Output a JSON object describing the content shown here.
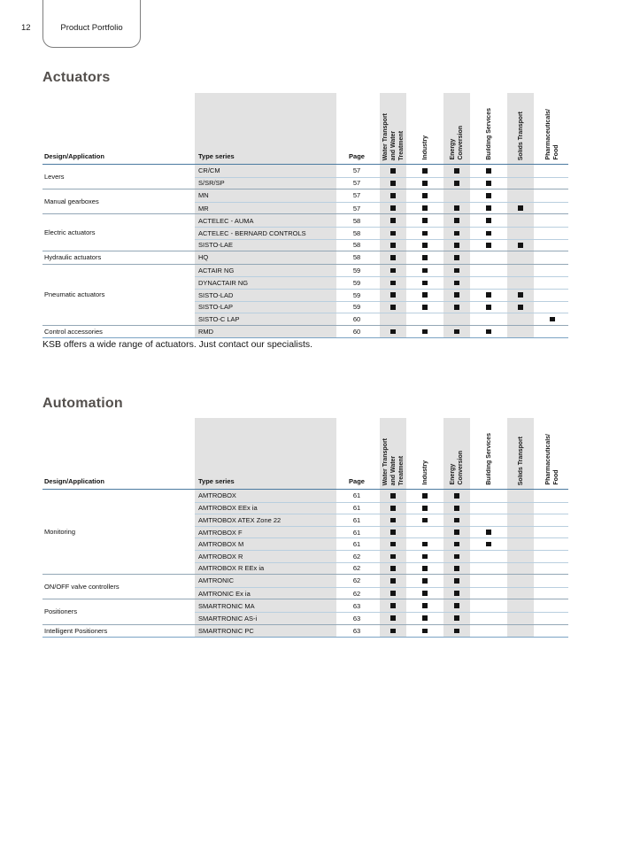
{
  "page": {
    "number": "12",
    "tab_label": "Product Portfolio"
  },
  "colors": {
    "accent_line": "#4b7aa0",
    "row_line": "#b9cfdf",
    "group_line": "#93a7b6",
    "band": "#e2e2e2",
    "mark": "#131313"
  },
  "column_headers": {
    "design": "Design/Application",
    "type": "Type series",
    "page": "Page"
  },
  "categories": [
    {
      "label": "Water Transport\nand Water\nTreatment",
      "shaded": true
    },
    {
      "label": "Industry",
      "shaded": false
    },
    {
      "label": "Energy\nConversion",
      "shaded": true
    },
    {
      "label": "Building Services",
      "shaded": false
    },
    {
      "label": "Solids Transport",
      "shaded": true
    },
    {
      "label": "Pharmaceuticals/\nFood",
      "shaded": false
    }
  ],
  "sections": [
    {
      "title": "Actuators",
      "note": "KSB offers a wide range of actuators. Just contact our specialists.",
      "groups": [
        {
          "application": "Levers",
          "rows": [
            {
              "type": "CR/CM",
              "page": "57",
              "marks": [
                1,
                1,
                1,
                1,
                0,
                0
              ]
            },
            {
              "type": "S/SR/SP",
              "page": "57",
              "marks": [
                1,
                1,
                1,
                1,
                0,
                0
              ]
            }
          ]
        },
        {
          "application": "Manual gearboxes",
          "rows": [
            {
              "type": "MN",
              "page": "57",
              "marks": [
                1,
                1,
                0,
                1,
                0,
                0
              ]
            },
            {
              "type": "MR",
              "page": "57",
              "marks": [
                1,
                1,
                1,
                1,
                1,
                0
              ]
            }
          ]
        },
        {
          "application": "Electric actuators",
          "rows": [
            {
              "type": "ACTELEC - AUMA",
              "page": "58",
              "marks": [
                1,
                1,
                1,
                1,
                0,
                0
              ]
            },
            {
              "type": "ACTELEC - BERNARD CONTROLS",
              "page": "58",
              "marks": [
                1,
                1,
                1,
                1,
                0,
                0
              ]
            },
            {
              "type": "SISTO-LAE",
              "page": "58",
              "marks": [
                1,
                1,
                1,
                1,
                1,
                0
              ]
            }
          ]
        },
        {
          "application": "Hydraulic actuators",
          "rows": [
            {
              "type": "HQ",
              "page": "58",
              "marks": [
                1,
                1,
                1,
                0,
                0,
                0
              ]
            }
          ]
        },
        {
          "application": "Pneumatic actuators",
          "rows": [
            {
              "type": "ACTAIR NG",
              "page": "59",
              "marks": [
                1,
                1,
                1,
                0,
                0,
                0
              ]
            },
            {
              "type": "DYNACTAIR NG",
              "page": "59",
              "marks": [
                1,
                1,
                1,
                0,
                0,
                0
              ]
            },
            {
              "type": "SISTO-LAD",
              "page": "59",
              "marks": [
                1,
                1,
                1,
                1,
                1,
                0
              ]
            },
            {
              "type": "SISTO-LAP",
              "page": "59",
              "marks": [
                1,
                1,
                1,
                1,
                1,
                0
              ]
            },
            {
              "type": "SISTO-C LAP",
              "page": "60",
              "marks": [
                0,
                0,
                0,
                0,
                0,
                1
              ]
            }
          ]
        },
        {
          "application": "Control accessories",
          "rows": [
            {
              "type": "RMD",
              "page": "60",
              "marks": [
                1,
                1,
                1,
                1,
                0,
                0
              ]
            }
          ]
        }
      ]
    },
    {
      "title": "Automation",
      "note": "",
      "groups": [
        {
          "application": "Monitoring",
          "rows": [
            {
              "type": "AMTROBOX",
              "page": "61",
              "marks": [
                1,
                1,
                1,
                0,
                0,
                0
              ]
            },
            {
              "type": "AMTROBOX EEx ia",
              "page": "61",
              "marks": [
                1,
                1,
                1,
                0,
                0,
                0
              ]
            },
            {
              "type": "AMTROBOX ATEX Zone 22",
              "page": "61",
              "marks": [
                1,
                1,
                1,
                0,
                0,
                0
              ]
            },
            {
              "type": "AMTROBOX F",
              "page": "61",
              "marks": [
                1,
                0,
                1,
                1,
                0,
                0
              ]
            },
            {
              "type": "AMTROBOX M",
              "page": "61",
              "marks": [
                1,
                1,
                1,
                1,
                0,
                0
              ]
            },
            {
              "type": "AMTROBOX R",
              "page": "62",
              "marks": [
                1,
                1,
                1,
                0,
                0,
                0
              ]
            },
            {
              "type": "AMTROBOX R EEx ia",
              "page": "62",
              "marks": [
                1,
                1,
                1,
                0,
                0,
                0
              ]
            }
          ]
        },
        {
          "application": "ON/OFF valve controllers",
          "rows": [
            {
              "type": "AMTRONIC",
              "page": "62",
              "marks": [
                1,
                1,
                1,
                0,
                0,
                0
              ]
            },
            {
              "type": "AMTRONIC Ex ia",
              "page": "62",
              "marks": [
                1,
                1,
                1,
                0,
                0,
                0
              ]
            }
          ]
        },
        {
          "application": "Positioners",
          "rows": [
            {
              "type": "SMARTRONIC MA",
              "page": "63",
              "marks": [
                1,
                1,
                1,
                0,
                0,
                0
              ]
            },
            {
              "type": "SMARTRONIC AS-i",
              "page": "63",
              "marks": [
                1,
                1,
                1,
                0,
                0,
                0
              ]
            }
          ]
        },
        {
          "application": "Intelligent Positioners",
          "rows": [
            {
              "type": "SMARTRONIC PC",
              "page": "63",
              "marks": [
                1,
                1,
                1,
                0,
                0,
                0
              ]
            }
          ]
        }
      ]
    }
  ],
  "layout_tops": {
    "title1": 79,
    "table1": 105,
    "note1": 383,
    "title2": 447,
    "table2": 472
  }
}
